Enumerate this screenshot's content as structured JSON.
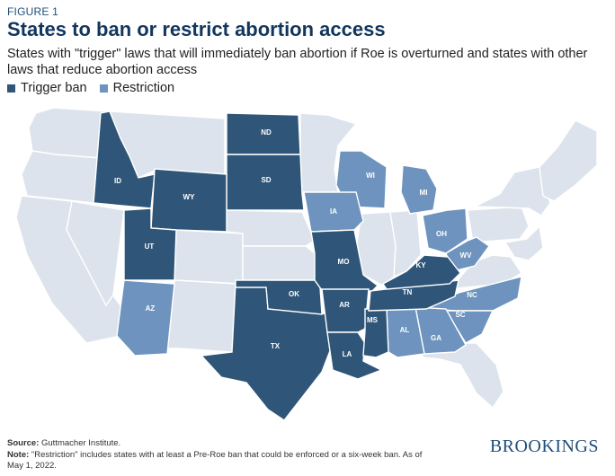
{
  "figure_label": "FIGURE 1",
  "title": "States to ban or restrict abortion access",
  "subtitle": "States with \"trigger\" laws that will immediately ban abortion if Roe is overturned and states with other laws that reduce abortion access",
  "legend": [
    {
      "label": "Trigger ban",
      "color": "#2f5679"
    },
    {
      "label": "Restriction",
      "color": "#6d93be"
    }
  ],
  "colors": {
    "trigger": "#2f5679",
    "restriction": "#6d93be",
    "other": "#dde3ec"
  },
  "state_labels": {
    "ND": "ND",
    "SD": "SD",
    "ID": "ID",
    "WY": "WY",
    "UT": "UT",
    "AZ": "AZ",
    "TX": "TX",
    "OK": "OK",
    "MO": "MO",
    "AR": "AR",
    "LA": "LA",
    "MS": "MS",
    "TN": "TN",
    "KY": "KY",
    "WI": "WI",
    "MI": "MI",
    "IA": "IA",
    "OH": "OH",
    "WV": "WV",
    "NC": "NC",
    "SC": "SC",
    "GA": "GA",
    "AL": "AL"
  },
  "source_label": "Source:",
  "source_text": " Guttmacher Institute.",
  "note_label": "Note:",
  "note_text": " \"Restriction\" includes states with at least a Pre-Roe ban that could be enforced or a six-week ban. As of May 1, 2022.",
  "brand": "BROOKINGS"
}
